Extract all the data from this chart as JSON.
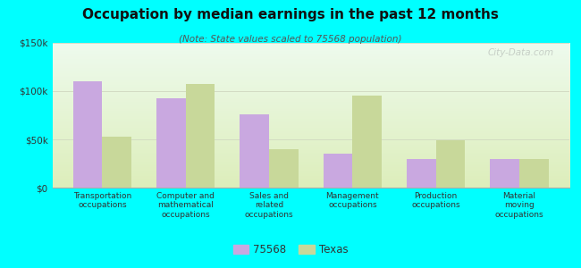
{
  "title": "Occupation by median earnings in the past 12 months",
  "subtitle": "(Note: State values scaled to 75568 population)",
  "categories": [
    "Transportation\noccupations",
    "Computer and\nmathematical\noccupations",
    "Sales and\nrelated\noccupations",
    "Management\noccupations",
    "Production\noccupations",
    "Material\nmoving\noccupations"
  ],
  "values_75568": [
    110000,
    93000,
    76000,
    35000,
    30000,
    30000
  ],
  "values_texas": [
    53000,
    107000,
    40000,
    95000,
    49000,
    30000
  ],
  "color_75568": "#c9a8e0",
  "color_texas": "#c8d89a",
  "background_color": "#00ffff",
  "plot_bg_top": "#eefbee",
  "plot_bg_bottom": "#ddeebb",
  "ylim": [
    0,
    150000
  ],
  "yticks": [
    0,
    50000,
    100000,
    150000
  ],
  "ytick_labels": [
    "$0",
    "$50k",
    "$100k",
    "$150k"
  ],
  "legend_labels": [
    "75568",
    "Texas"
  ],
  "watermark": "City-Data.com",
  "bar_width": 0.35
}
